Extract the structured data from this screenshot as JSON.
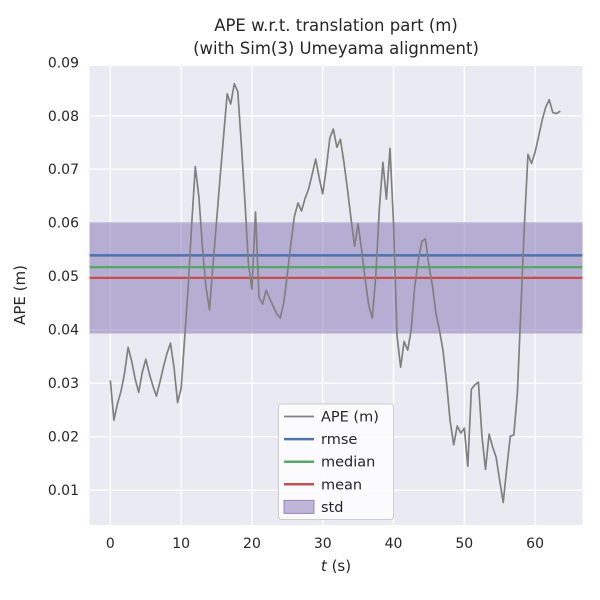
{
  "title": {
    "line1": "APE w.r.t. translation part (m)",
    "line2": "(with Sim(3) Umeyama alignment)"
  },
  "chart_data": {
    "type": "line",
    "title": "APE w.r.t. translation part (m) (with Sim(3) Umeyama alignment)",
    "xlabel_italic": "t",
    "xlabel_rest": " (s)",
    "ylabel": "APE (m)",
    "xlim": [
      -2.95,
      66.7
    ],
    "ylim": [
      0.0035,
      0.0893
    ],
    "grid": true,
    "legend_position": "lower-center-inside",
    "xticks": [
      0,
      10,
      20,
      30,
      40,
      50,
      60
    ],
    "xticklabels": [
      "0",
      "10",
      "20",
      "30",
      "40",
      "50",
      "60"
    ],
    "yticks": [
      0.01,
      0.02,
      0.03,
      0.04,
      0.05,
      0.06,
      0.07,
      0.08,
      0.09
    ],
    "yticklabels": [
      "0.01",
      "0.02",
      "0.03",
      "0.04",
      "0.05",
      "0.06",
      "0.07",
      "0.08",
      "0.09"
    ],
    "stats": {
      "rmse": 0.0539,
      "median": 0.0517,
      "mean": 0.0497,
      "std": 0.0104
    },
    "std_band": {
      "lower": 0.0393,
      "upper": 0.0601
    },
    "series": [
      {
        "name": "APE (m)",
        "color": "#808080",
        "t": {
          "start": 0,
          "step": 0.5,
          "count": 128
        },
        "values": [
          0.0304,
          0.0231,
          0.0262,
          0.0285,
          0.0318,
          0.0367,
          0.0342,
          0.0308,
          0.0283,
          0.032,
          0.0345,
          0.0318,
          0.0295,
          0.0276,
          0.0302,
          0.0331,
          0.0356,
          0.0375,
          0.0328,
          0.0264,
          0.0291,
          0.0385,
          0.0482,
          0.06,
          0.0705,
          0.0648,
          0.0556,
          0.048,
          0.0437,
          0.0522,
          0.0604,
          0.0685,
          0.0762,
          0.0841,
          0.0822,
          0.086,
          0.0845,
          0.0748,
          0.0641,
          0.0524,
          0.0476,
          0.062,
          0.0461,
          0.0448,
          0.0474,
          0.0459,
          0.0444,
          0.043,
          0.0422,
          0.0451,
          0.0503,
          0.0561,
          0.0612,
          0.0637,
          0.0622,
          0.0645,
          0.0663,
          0.069,
          0.0719,
          0.0684,
          0.0654,
          0.0702,
          0.0758,
          0.0775,
          0.0741,
          0.0756,
          0.0712,
          0.0662,
          0.0608,
          0.0556,
          0.0598,
          0.0548,
          0.0494,
          0.0446,
          0.0422,
          0.0502,
          0.0628,
          0.0713,
          0.0644,
          0.0739,
          0.06,
          0.039,
          0.033,
          0.0378,
          0.0362,
          0.04,
          0.048,
          0.053,
          0.0565,
          0.057,
          0.052,
          0.0483,
          0.043,
          0.0399,
          0.036,
          0.03,
          0.023,
          0.0185,
          0.022,
          0.0207,
          0.0216,
          0.0145,
          0.0289,
          0.0297,
          0.0302,
          0.02,
          0.0139,
          0.0205,
          0.0181,
          0.0162,
          0.0118,
          0.0077,
          0.0142,
          0.0201,
          0.0203,
          0.0282,
          0.044,
          0.06,
          0.0728,
          0.0711,
          0.0732,
          0.0761,
          0.0792,
          0.0816,
          0.083,
          0.0806,
          0.0804,
          0.0808
        ]
      }
    ],
    "colors": {
      "ape_line": "#808080",
      "rmse_line": "#4C72B0",
      "median_line": "#55A868",
      "mean_line": "#C44E52",
      "std_band": "#8172B2",
      "plot_background": "#EAEAF2",
      "grid": "#FFFFFF",
      "text": "#262626",
      "figure_background": "#FFFFFF"
    }
  },
  "legend": {
    "items": [
      {
        "label": "APE (m)",
        "type": "line",
        "color": "#808080",
        "width": 1.7
      },
      {
        "label": "rmse",
        "type": "line",
        "color": "#4C72B0",
        "width": 2.5
      },
      {
        "label": "median",
        "type": "line",
        "color": "#55A868",
        "width": 2.5
      },
      {
        "label": "mean",
        "type": "line",
        "color": "#C44E52",
        "width": 2.5
      },
      {
        "label": "std",
        "type": "patch",
        "color": "#8172B2",
        "width": 0
      }
    ]
  }
}
